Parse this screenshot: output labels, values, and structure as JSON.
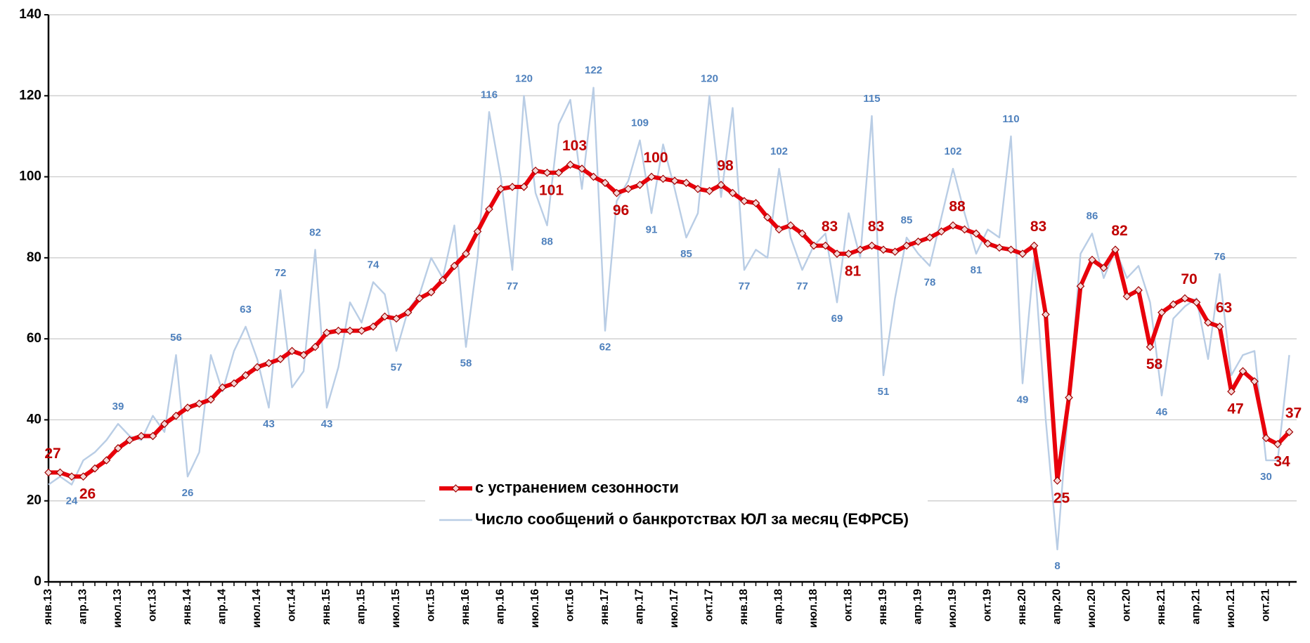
{
  "chart_data": {
    "type": "line",
    "categories": [
      "янв.13",
      null,
      null,
      "апр.13",
      null,
      null,
      "июл.13",
      null,
      null,
      "окт.13",
      null,
      null,
      "янв.14",
      null,
      null,
      "апр.14",
      null,
      null,
      "июл.14",
      null,
      null,
      "окт.14",
      null,
      null,
      "янв.15",
      null,
      null,
      "апр.15",
      null,
      null,
      "июл.15",
      null,
      null,
      "окт.15",
      null,
      null,
      "янв.16",
      null,
      null,
      "апр.16",
      null,
      null,
      "июл.16",
      null,
      null,
      "окт.16",
      null,
      null,
      "янв.17",
      null,
      null,
      "апр.17",
      null,
      null,
      "июл.17",
      null,
      null,
      "окт.17",
      null,
      null,
      "янв.18",
      null,
      null,
      "апр.18",
      null,
      null,
      "июл.18",
      null,
      null,
      "окт.18",
      null,
      null,
      "янв.19",
      null,
      null,
      "апр.19",
      null,
      null,
      "июл.19",
      null,
      null,
      "окт.19",
      null,
      null,
      "янв.20",
      null,
      null,
      "апр.20",
      null,
      null,
      "июл.20",
      null,
      null,
      "окт.20",
      null,
      null,
      "янв.21",
      null,
      null,
      "апр.21",
      null,
      null,
      "июл.21",
      null,
      null,
      "окт.21",
      null,
      null
    ],
    "series": [
      {
        "name": "с устранением сезонности",
        "color": "#e8000b",
        "label_color": "#c00000",
        "values": [
          27,
          27,
          26,
          26,
          28,
          30,
          33,
          35,
          36,
          36,
          39,
          41,
          43,
          44,
          45,
          48,
          49,
          51,
          53,
          54,
          55,
          57,
          56,
          58,
          61.5,
          62,
          62,
          62,
          63,
          65.5,
          65,
          66.5,
          70,
          71.5,
          74.5,
          78,
          81,
          86.5,
          92,
          97,
          97.5,
          97.5,
          101.5,
          101,
          101,
          103,
          102,
          100,
          98.5,
          96,
          97,
          98,
          100,
          99.5,
          99,
          98.5,
          97,
          96.5,
          98,
          96,
          94,
          93.5,
          90,
          87,
          88,
          86,
          83,
          83,
          81,
          81,
          82,
          83,
          82,
          81.5,
          83,
          84,
          85,
          86.5,
          88,
          87,
          86,
          83.5,
          82.5,
          82,
          81,
          83,
          66,
          25,
          45.5,
          73,
          79.5,
          77.5,
          82,
          70.5,
          72,
          58,
          66.5,
          68.5,
          70,
          69,
          64,
          63,
          47,
          52,
          49.5,
          35.5,
          34,
          37
        ],
        "value_labels": [
          "27",
          null,
          null,
          "26",
          null,
          null,
          null,
          null,
          null,
          null,
          null,
          null,
          null,
          null,
          null,
          null,
          null,
          null,
          null,
          null,
          null,
          null,
          null,
          null,
          null,
          null,
          null,
          null,
          null,
          null,
          null,
          null,
          null,
          null,
          null,
          null,
          null,
          null,
          null,
          null,
          null,
          null,
          null,
          "101",
          null,
          "103",
          null,
          null,
          null,
          "96",
          null,
          null,
          "100",
          null,
          null,
          null,
          null,
          null,
          "98",
          null,
          null,
          null,
          null,
          null,
          null,
          null,
          null,
          "83",
          null,
          "81",
          null,
          "83",
          null,
          null,
          null,
          null,
          null,
          null,
          "88",
          null,
          null,
          null,
          null,
          null,
          null,
          "83",
          null,
          "25",
          null,
          null,
          null,
          null,
          "82",
          null,
          null,
          "58",
          null,
          null,
          "70",
          null,
          null,
          "63",
          "47",
          null,
          null,
          null,
          "34",
          "37"
        ]
      },
      {
        "name": "Число сообщений о банкротствах ЮЛ за месяц (ЕФРСБ)",
        "color": "#b9cde5",
        "label_color": "#4f81bd",
        "values": [
          24,
          26,
          24,
          30,
          32,
          35,
          39,
          36,
          35,
          41,
          37,
          56,
          26,
          32,
          56,
          47,
          57,
          63,
          55,
          43,
          72,
          48,
          52,
          82,
          43,
          53,
          69,
          64,
          74,
          71,
          57,
          67,
          71,
          80,
          75,
          88,
          58,
          80,
          116,
          100,
          77,
          120,
          96,
          88,
          113,
          119,
          97,
          122,
          62,
          94,
          99,
          109,
          91,
          108,
          97,
          85,
          91,
          120,
          95,
          117,
          77,
          82,
          80,
          102,
          85,
          77,
          83,
          86,
          69,
          91,
          80,
          115,
          51,
          70,
          85,
          81,
          78,
          90,
          102,
          91,
          81,
          87,
          85,
          110,
          49,
          80,
          40,
          8,
          45,
          81,
          86,
          75,
          82,
          75,
          78,
          69,
          46,
          65,
          68,
          70,
          55,
          76,
          51,
          56,
          57,
          30,
          30,
          56
        ],
        "value_labels": [
          null,
          null,
          "24",
          null,
          null,
          null,
          "39",
          null,
          null,
          null,
          null,
          "56",
          "26",
          null,
          null,
          null,
          null,
          "63",
          null,
          "43",
          "72",
          null,
          null,
          "82",
          "43",
          null,
          null,
          null,
          "74",
          null,
          "57",
          null,
          null,
          null,
          null,
          null,
          "58",
          null,
          "116",
          null,
          "77",
          "120",
          null,
          "88",
          null,
          null,
          null,
          "122",
          "62",
          null,
          null,
          "109",
          "91",
          null,
          null,
          "85",
          null,
          "120",
          null,
          null,
          "77",
          null,
          null,
          "102",
          null,
          "77",
          null,
          null,
          "69",
          null,
          null,
          "115",
          "51",
          null,
          "85",
          null,
          "78",
          null,
          "102",
          null,
          "81",
          null,
          null,
          "110",
          "49",
          null,
          null,
          "8",
          null,
          null,
          "86",
          null,
          null,
          null,
          null,
          null,
          "46",
          null,
          null,
          null,
          null,
          "76",
          null,
          null,
          null,
          "30",
          null,
          null
        ]
      }
    ],
    "ylim": [
      0,
      140
    ],
    "yticks": [
      0,
      20,
      40,
      60,
      80,
      100,
      120,
      140
    ],
    "grid": true
  }
}
